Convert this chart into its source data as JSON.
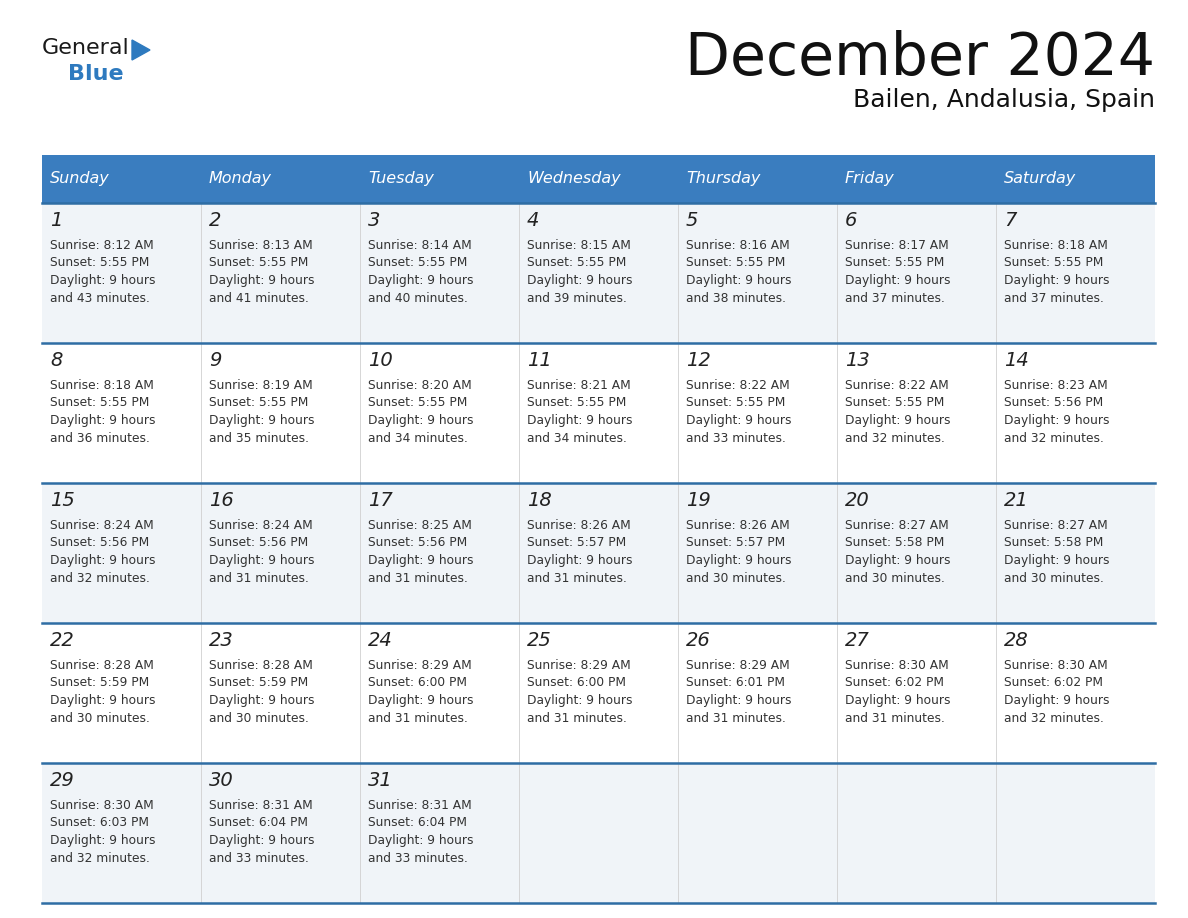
{
  "title": "December 2024",
  "subtitle": "Bailen, Andalusia, Spain",
  "header_bg": "#3a7dbf",
  "header_text_color": "#ffffff",
  "days_of_week": [
    "Sunday",
    "Monday",
    "Tuesday",
    "Wednesday",
    "Thursday",
    "Friday",
    "Saturday"
  ],
  "row_bg_odd": "#f0f4f8",
  "row_bg_even": "#ffffff",
  "cell_border_color": "#2e6da4",
  "logo_general_color": "#1a1a1a",
  "logo_blue_color": "#2e7abf",
  "calendar": [
    [
      {
        "day": 1,
        "sunrise": "8:12 AM",
        "sunset": "5:55 PM",
        "daylight_h": "9 hours",
        "daylight_m": "43 minutes."
      },
      {
        "day": 2,
        "sunrise": "8:13 AM",
        "sunset": "5:55 PM",
        "daylight_h": "9 hours",
        "daylight_m": "41 minutes."
      },
      {
        "day": 3,
        "sunrise": "8:14 AM",
        "sunset": "5:55 PM",
        "daylight_h": "9 hours",
        "daylight_m": "40 minutes."
      },
      {
        "day": 4,
        "sunrise": "8:15 AM",
        "sunset": "5:55 PM",
        "daylight_h": "9 hours",
        "daylight_m": "39 minutes."
      },
      {
        "day": 5,
        "sunrise": "8:16 AM",
        "sunset": "5:55 PM",
        "daylight_h": "9 hours",
        "daylight_m": "38 minutes."
      },
      {
        "day": 6,
        "sunrise": "8:17 AM",
        "sunset": "5:55 PM",
        "daylight_h": "9 hours",
        "daylight_m": "37 minutes."
      },
      {
        "day": 7,
        "sunrise": "8:18 AM",
        "sunset": "5:55 PM",
        "daylight_h": "9 hours",
        "daylight_m": "37 minutes."
      }
    ],
    [
      {
        "day": 8,
        "sunrise": "8:18 AM",
        "sunset": "5:55 PM",
        "daylight_h": "9 hours",
        "daylight_m": "36 minutes."
      },
      {
        "day": 9,
        "sunrise": "8:19 AM",
        "sunset": "5:55 PM",
        "daylight_h": "9 hours",
        "daylight_m": "35 minutes."
      },
      {
        "day": 10,
        "sunrise": "8:20 AM",
        "sunset": "5:55 PM",
        "daylight_h": "9 hours",
        "daylight_m": "34 minutes."
      },
      {
        "day": 11,
        "sunrise": "8:21 AM",
        "sunset": "5:55 PM",
        "daylight_h": "9 hours",
        "daylight_m": "34 minutes."
      },
      {
        "day": 12,
        "sunrise": "8:22 AM",
        "sunset": "5:55 PM",
        "daylight_h": "9 hours",
        "daylight_m": "33 minutes."
      },
      {
        "day": 13,
        "sunrise": "8:22 AM",
        "sunset": "5:55 PM",
        "daylight_h": "9 hours",
        "daylight_m": "32 minutes."
      },
      {
        "day": 14,
        "sunrise": "8:23 AM",
        "sunset": "5:56 PM",
        "daylight_h": "9 hours",
        "daylight_m": "32 minutes."
      }
    ],
    [
      {
        "day": 15,
        "sunrise": "8:24 AM",
        "sunset": "5:56 PM",
        "daylight_h": "9 hours",
        "daylight_m": "32 minutes."
      },
      {
        "day": 16,
        "sunrise": "8:24 AM",
        "sunset": "5:56 PM",
        "daylight_h": "9 hours",
        "daylight_m": "31 minutes."
      },
      {
        "day": 17,
        "sunrise": "8:25 AM",
        "sunset": "5:56 PM",
        "daylight_h": "9 hours",
        "daylight_m": "31 minutes."
      },
      {
        "day": 18,
        "sunrise": "8:26 AM",
        "sunset": "5:57 PM",
        "daylight_h": "9 hours",
        "daylight_m": "31 minutes."
      },
      {
        "day": 19,
        "sunrise": "8:26 AM",
        "sunset": "5:57 PM",
        "daylight_h": "9 hours",
        "daylight_m": "30 minutes."
      },
      {
        "day": 20,
        "sunrise": "8:27 AM",
        "sunset": "5:58 PM",
        "daylight_h": "9 hours",
        "daylight_m": "30 minutes."
      },
      {
        "day": 21,
        "sunrise": "8:27 AM",
        "sunset": "5:58 PM",
        "daylight_h": "9 hours",
        "daylight_m": "30 minutes."
      }
    ],
    [
      {
        "day": 22,
        "sunrise": "8:28 AM",
        "sunset": "5:59 PM",
        "daylight_h": "9 hours",
        "daylight_m": "30 minutes."
      },
      {
        "day": 23,
        "sunrise": "8:28 AM",
        "sunset": "5:59 PM",
        "daylight_h": "9 hours",
        "daylight_m": "30 minutes."
      },
      {
        "day": 24,
        "sunrise": "8:29 AM",
        "sunset": "6:00 PM",
        "daylight_h": "9 hours",
        "daylight_m": "31 minutes."
      },
      {
        "day": 25,
        "sunrise": "8:29 AM",
        "sunset": "6:00 PM",
        "daylight_h": "9 hours",
        "daylight_m": "31 minutes."
      },
      {
        "day": 26,
        "sunrise": "8:29 AM",
        "sunset": "6:01 PM",
        "daylight_h": "9 hours",
        "daylight_m": "31 minutes."
      },
      {
        "day": 27,
        "sunrise": "8:30 AM",
        "sunset": "6:02 PM",
        "daylight_h": "9 hours",
        "daylight_m": "31 minutes."
      },
      {
        "day": 28,
        "sunrise": "8:30 AM",
        "sunset": "6:02 PM",
        "daylight_h": "9 hours",
        "daylight_m": "32 minutes."
      }
    ],
    [
      {
        "day": 29,
        "sunrise": "8:30 AM",
        "sunset": "6:03 PM",
        "daylight_h": "9 hours",
        "daylight_m": "32 minutes."
      },
      {
        "day": 30,
        "sunrise": "8:31 AM",
        "sunset": "6:04 PM",
        "daylight_h": "9 hours",
        "daylight_m": "33 minutes."
      },
      {
        "day": 31,
        "sunrise": "8:31 AM",
        "sunset": "6:04 PM",
        "daylight_h": "9 hours",
        "daylight_m": "33 minutes."
      },
      null,
      null,
      null,
      null
    ]
  ]
}
